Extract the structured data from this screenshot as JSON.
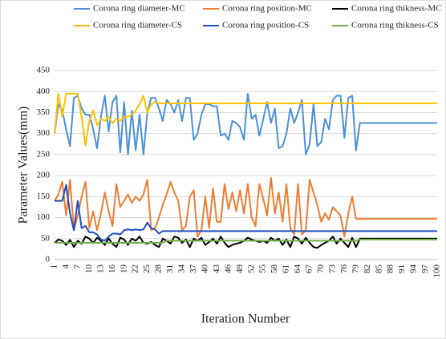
{
  "chart_data": {
    "type": "line",
    "xlabel": "Iteration Number",
    "ylabel": "Parameter Values(mm)",
    "x": [
      1,
      2,
      3,
      4,
      5,
      6,
      7,
      8,
      9,
      10,
      11,
      12,
      13,
      14,
      15,
      16,
      17,
      18,
      19,
      20,
      21,
      22,
      23,
      24,
      25,
      26,
      27,
      28,
      29,
      30,
      31,
      32,
      33,
      34,
      35,
      36,
      37,
      38,
      39,
      40,
      41,
      42,
      43,
      44,
      45,
      46,
      47,
      48,
      49,
      50,
      51,
      52,
      53,
      54,
      55,
      56,
      57,
      58,
      59,
      60,
      61,
      62,
      63,
      64,
      65,
      66,
      67,
      68,
      69,
      70,
      71,
      72,
      73,
      74,
      75,
      76,
      77,
      78,
      79,
      80,
      81,
      82,
      83,
      84,
      85,
      86,
      87,
      88,
      89,
      90,
      91,
      92,
      93,
      94,
      95,
      96,
      97,
      98,
      99,
      100
    ],
    "xlim": [
      1,
      100
    ],
    "xticks": [
      1,
      4,
      7,
      10,
      13,
      16,
      19,
      22,
      25,
      28,
      31,
      34,
      37,
      40,
      43,
      46,
      49,
      52,
      55,
      58,
      61,
      64,
      67,
      70,
      73,
      76,
      79,
      82,
      85,
      88,
      91,
      94,
      97,
      100
    ],
    "ylim": [
      0,
      450
    ],
    "yticks": [
      0,
      50,
      100,
      150,
      200,
      250,
      300,
      350,
      400,
      450
    ],
    "grid": true,
    "series": [
      {
        "name": "Corona ring diameter-MC",
        "color": "#4a90d9",
        "values": [
          300,
          370,
          355,
          310,
          270,
          385,
          390,
          360,
          345,
          345,
          310,
          265,
          340,
          390,
          305,
          375,
          390,
          255,
          375,
          250,
          355,
          260,
          345,
          250,
          350,
          385,
          385,
          360,
          330,
          380,
          370,
          350,
          380,
          330,
          385,
          385,
          285,
          300,
          345,
          370,
          370,
          365,
          365,
          295,
          300,
          285,
          330,
          325,
          315,
          285,
          395,
          335,
          345,
          295,
          335,
          375,
          325,
          360,
          265,
          270,
          300,
          360,
          325,
          350,
          380,
          250,
          275,
          370,
          270,
          280,
          335,
          310,
          380,
          390,
          390,
          290,
          385,
          390,
          260,
          325,
          325,
          325,
          325,
          325,
          325,
          325,
          325,
          325,
          325,
          325,
          325,
          325,
          325,
          325,
          325,
          325,
          325,
          325,
          325,
          325
        ]
      },
      {
        "name": "Corona ring position-MC",
        "color": "#ed7d31",
        "values": [
          140,
          155,
          185,
          105,
          190,
          70,
          105,
          150,
          185,
          75,
          115,
          70,
          110,
          160,
          115,
          80,
          180,
          125,
          140,
          155,
          135,
          150,
          140,
          155,
          190,
          70,
          75,
          100,
          130,
          155,
          185,
          160,
          140,
          70,
          80,
          150,
          165,
          55,
          70,
          150,
          75,
          170,
          90,
          90,
          180,
          120,
          160,
          115,
          165,
          110,
          180,
          100,
          80,
          180,
          145,
          105,
          195,
          110,
          160,
          90,
          180,
          75,
          60,
          180,
          60,
          70,
          190,
          160,
          130,
          90,
          110,
          95,
          125,
          115,
          105,
          55,
          110,
          150,
          97,
          97,
          97,
          97,
          97,
          97,
          97,
          97,
          97,
          97,
          97,
          97,
          97,
          97,
          97,
          97,
          97,
          97,
          97,
          97,
          97,
          97
        ]
      },
      {
        "name": "Corona ring thikness-MC",
        "color": "#000000",
        "values": [
          40,
          48,
          45,
          35,
          47,
          30,
          45,
          38,
          55,
          50,
          40,
          52,
          45,
          35,
          50,
          38,
          30,
          52,
          48,
          35,
          50,
          45,
          55,
          40,
          38,
          42,
          35,
          30,
          50,
          45,
          38,
          55,
          52,
          40,
          48,
          30,
          50,
          45,
          52,
          35,
          42,
          50,
          38,
          55,
          40,
          30,
          35,
          38,
          40,
          45,
          52,
          48,
          45,
          42,
          45,
          40,
          52,
          45,
          50,
          35,
          48,
          30,
          55,
          50,
          38,
          52,
          40,
          30,
          28,
          35,
          40,
          45,
          55,
          38,
          50,
          40,
          30,
          52,
          30,
          50,
          50,
          50,
          50,
          50,
          50,
          50,
          50,
          50,
          50,
          50,
          50,
          50,
          50,
          50,
          50,
          50,
          50,
          50,
          50,
          50
        ]
      },
      {
        "name": "Corona ring diameter-CS",
        "color": "#ffc000",
        "values": [
          300,
          395,
          340,
          395,
          395,
          395,
          395,
          340,
          272,
          330,
          355,
          320,
          335,
          330,
          340,
          325,
          335,
          330,
          340,
          340,
          345,
          355,
          370,
          390,
          350,
          370,
          375,
          372,
          372,
          372,
          372,
          372,
          372,
          372,
          372,
          372,
          372,
          372,
          372,
          372,
          372,
          372,
          372,
          372,
          372,
          372,
          372,
          372,
          372,
          372,
          372,
          372,
          372,
          372,
          372,
          372,
          372,
          372,
          372,
          372,
          372,
          372,
          372,
          372,
          372,
          372,
          372,
          372,
          372,
          372,
          372,
          372,
          372,
          372,
          372,
          372,
          372,
          372,
          372,
          372,
          372,
          372,
          372,
          372,
          372,
          372,
          372,
          372,
          372,
          372,
          372,
          372,
          372,
          372,
          372,
          372,
          372,
          372,
          372,
          372
        ]
      },
      {
        "name": "Corona ring position-CS",
        "color": "#1f4fbf",
        "values": [
          140,
          140,
          140,
          178,
          110,
          70,
          140,
          75,
          80,
          65,
          65,
          60,
          48,
          45,
          55,
          62,
          62,
          60,
          70,
          72,
          70,
          72,
          70,
          72,
          88,
          75,
          72,
          62,
          68,
          68,
          68,
          68,
          68,
          68,
          68,
          68,
          68,
          68,
          68,
          68,
          68,
          68,
          68,
          68,
          68,
          68,
          68,
          68,
          68,
          68,
          68,
          68,
          68,
          68,
          68,
          68,
          68,
          68,
          68,
          68,
          68,
          68,
          68,
          68,
          68,
          68,
          68,
          68,
          68,
          68,
          68,
          68,
          68,
          68,
          68,
          68,
          68,
          68,
          68,
          68,
          68,
          68,
          68,
          68,
          68,
          68,
          68,
          68,
          68,
          68,
          68,
          68,
          68,
          68,
          68,
          68,
          68,
          68,
          68,
          68
        ]
      },
      {
        "name": "Corona ring thikness-CS",
        "color": "#70ad47",
        "values": [
          40,
          40,
          40,
          40,
          40,
          40,
          40,
          40,
          40,
          40,
          40,
          40,
          40,
          40,
          40,
          40,
          40,
          40,
          40,
          40,
          40,
          40,
          40,
          40,
          40,
          40,
          40,
          40,
          40,
          45,
          45,
          45,
          45,
          45,
          45,
          45,
          45,
          45,
          45,
          45,
          45,
          45,
          45,
          45,
          45,
          45,
          45,
          45,
          45,
          45,
          45,
          45,
          45,
          45,
          45,
          45,
          45,
          45,
          45,
          45,
          45,
          45,
          45,
          45,
          45,
          45,
          45,
          45,
          45,
          45,
          45,
          45,
          45,
          45,
          45,
          45,
          45,
          45,
          45,
          48,
          48,
          48,
          48,
          48,
          48,
          48,
          48,
          48,
          48,
          48,
          48,
          48,
          48,
          48,
          48,
          48,
          48,
          48,
          48,
          48
        ]
      }
    ]
  }
}
